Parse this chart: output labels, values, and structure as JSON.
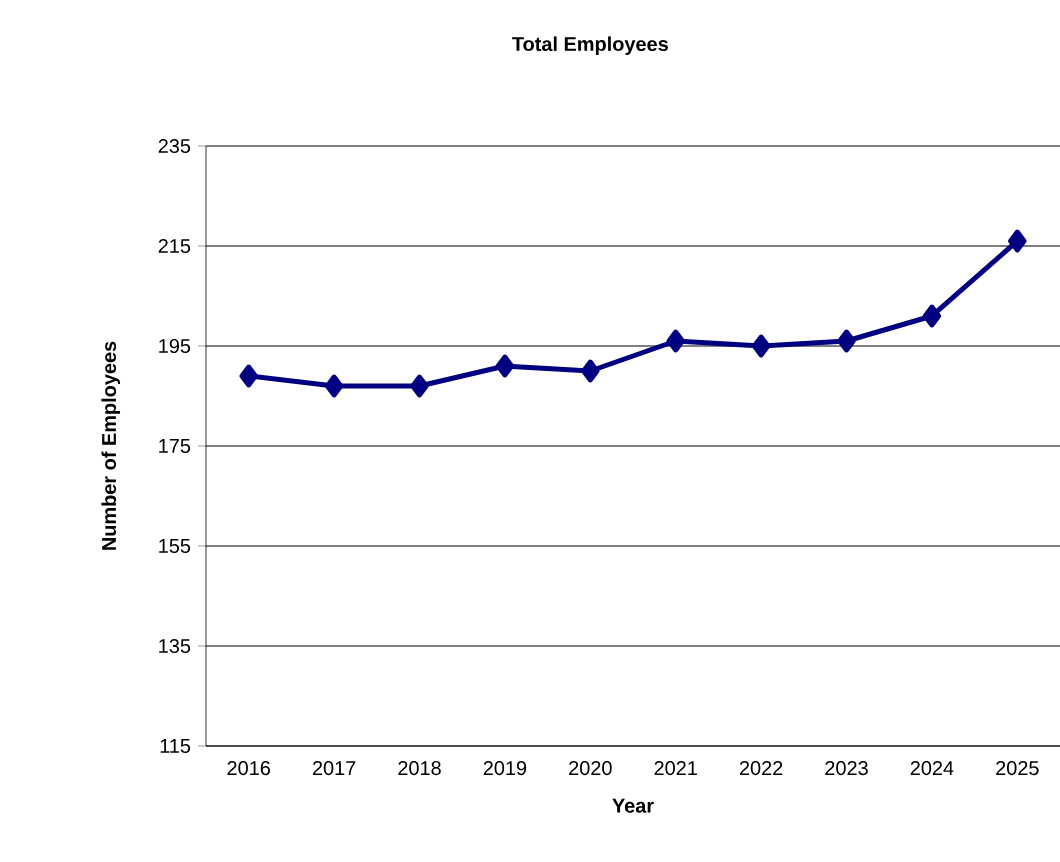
{
  "chart_data": {
    "type": "line",
    "title": "Total Employees",
    "xlabel": "Year",
    "ylabel": "Number of Employees",
    "categories": [
      "2016",
      "2017",
      "2018",
      "2019",
      "2020",
      "2021",
      "2022",
      "2023",
      "2024",
      "2025"
    ],
    "series": [
      {
        "color": "#000080",
        "values": [
          189,
          187,
          187,
          191,
          190,
          196,
          195,
          196,
          201,
          216
        ]
      }
    ],
    "ylim": [
      115,
      235
    ],
    "yticks": [
      115,
      135,
      155,
      175,
      195,
      215,
      235
    ],
    "grid": "y",
    "marker": "diamond",
    "line_style": "solid"
  }
}
